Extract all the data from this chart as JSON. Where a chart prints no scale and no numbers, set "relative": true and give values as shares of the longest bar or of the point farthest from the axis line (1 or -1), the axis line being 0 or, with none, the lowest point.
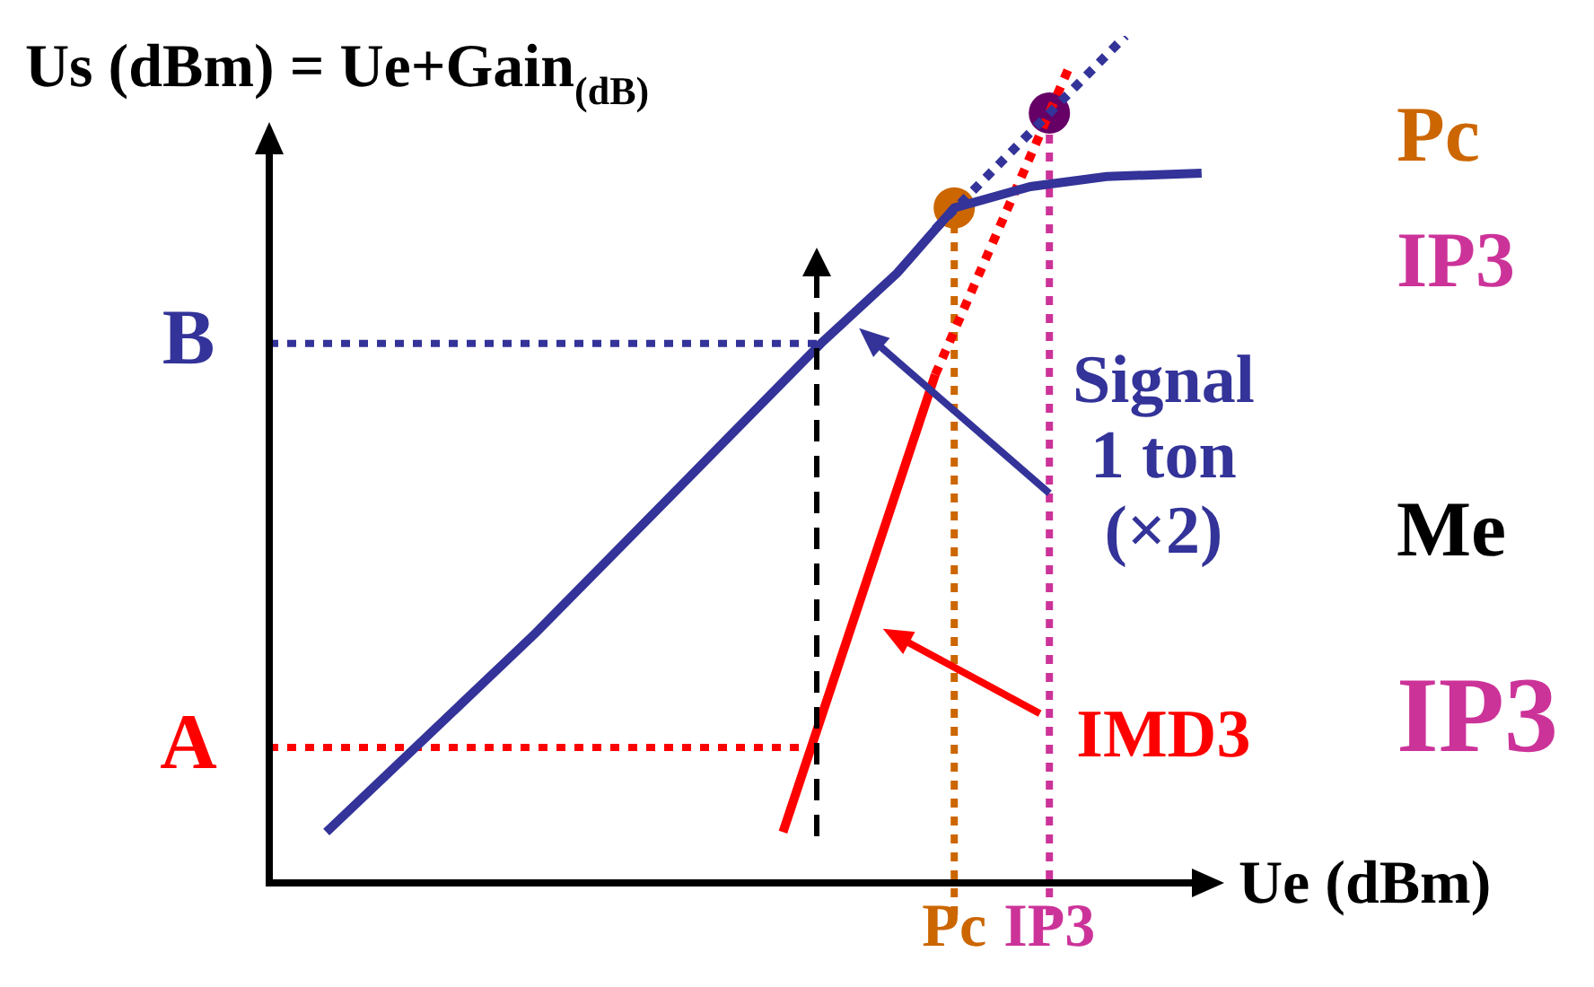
{
  "chart_data": {
    "type": "line",
    "relative": true,
    "ylabel": "Us (dBm) = Ue+Gain$_{(dB)}$",
    "xlabel": "Ue (dBm)",
    "categories": [
      null,
      null,
      null,
      null,
      null,
      null,
      null,
      null,
      null,
      null,
      null,
      null,
      null,
      null,
      null,
      null,
      null,
      null,
      null,
      null,
      null,
      null,
      null,
      null,
      null,
      null,
      null,
      null,
      null,
      null,
      null,
      null,
      null,
      null,
      null,
      null,
      "Pc",
      null,
      null,
      null,
      null,
      "IP3",
      null,
      null,
      null,
      null,
      null,
      null,
      null,
      null,
      null
    ],
    "series": [
      {
        "color": "#333399",
        "values": [
          null,
          null,
          null,
          0.06,
          null,
          null,
          null,
          null,
          null,
          null,
          null,
          null,
          null,
          null,
          0.295,
          null,
          null,
          null,
          null,
          null,
          null,
          null,
          null,
          null,
          null,
          null,
          null,
          null,
          null,
          0.637,
          null,
          null,
          null,
          0.72,
          null,
          null,
          0.797,
          null,
          null,
          null,
          0.822,
          null,
          null,
          null,
          0.834,
          null,
          null,
          null,
          null,
          0.838,
          null
        ]
      },
      {
        "color": "#333399",
        "line_style": "dotted",
        "values": [
          null,
          null,
          null,
          null,
          null,
          null,
          null,
          null,
          null,
          null,
          null,
          null,
          null,
          null,
          null,
          null,
          null,
          null,
          null,
          null,
          null,
          null,
          null,
          null,
          null,
          null,
          null,
          null,
          null,
          null,
          null,
          null,
          null,
          null,
          null,
          0.772,
          null,
          null,
          null,
          null,
          null,
          null,
          null,
          null,
          null,
          1.0,
          null,
          null,
          null,
          null,
          null
        ]
      },
      {
        "color": "#ff0000",
        "values": [
          null,
          null,
          null,
          null,
          null,
          null,
          null,
          null,
          null,
          null,
          null,
          null,
          null,
          null,
          null,
          null,
          null,
          null,
          null,
          null,
          null,
          null,
          null,
          null,
          null,
          null,
          null,
          0.06,
          null,
          null,
          null,
          null,
          null,
          null,
          null,
          0.6,
          null,
          null,
          null,
          null,
          null,
          null,
          null,
          null,
          null,
          null,
          null,
          null,
          null,
          null,
          null
        ]
      },
      {
        "color": "#ff0000",
        "line_style": "dotted",
        "values": [
          null,
          null,
          null,
          null,
          null,
          null,
          null,
          null,
          null,
          null,
          null,
          null,
          null,
          null,
          null,
          null,
          null,
          null,
          null,
          null,
          null,
          null,
          null,
          null,
          null,
          null,
          null,
          null,
          null,
          null,
          null,
          null,
          null,
          null,
          null,
          0.6,
          null,
          null,
          null,
          null,
          null,
          null,
          0.961,
          null,
          null,
          null,
          null,
          null,
          null,
          null,
          null
        ]
      },
      {
        "type": "scatter",
        "marker": "circle",
        "color": "#cc6600",
        "values": [
          null,
          null,
          null,
          null,
          null,
          null,
          null,
          null,
          null,
          null,
          null,
          null,
          null,
          null,
          null,
          null,
          null,
          null,
          null,
          null,
          null,
          null,
          null,
          null,
          null,
          null,
          null,
          null,
          null,
          null,
          null,
          null,
          null,
          null,
          null,
          null,
          0.797,
          null,
          null,
          null,
          null,
          null,
          null,
          null,
          null,
          null,
          null,
          null,
          null,
          null,
          null
        ]
      },
      {
        "type": "scatter",
        "marker": "circle",
        "color": "#660066",
        "values": [
          null,
          null,
          null,
          null,
          null,
          null,
          null,
          null,
          null,
          null,
          null,
          null,
          null,
          null,
          null,
          null,
          null,
          null,
          null,
          null,
          null,
          null,
          null,
          null,
          null,
          null,
          null,
          null,
          null,
          null,
          null,
          null,
          null,
          null,
          null,
          null,
          null,
          null,
          null,
          null,
          null,
          0.909,
          null,
          null,
          null,
          null,
          null,
          null,
          null,
          null,
          null
        ]
      }
    ],
    "ref_lines": [
      {
        "axis": "y",
        "value": 0.16,
        "label": "A",
        "color": "#ff0000",
        "line_style": "dotted"
      },
      {
        "axis": "y",
        "value": 0.637,
        "label": "B",
        "color": "#333399",
        "line_style": "dotted"
      },
      {
        "axis": "x",
        "value": "Pc",
        "color": "#cc6600",
        "line_style": "dotted"
      },
      {
        "axis": "x",
        "value": "IP3",
        "color": "#cc3399",
        "line_style": "dotted"
      }
    ],
    "annotations": [
      "Signal 1 ton (×2)",
      "IMD3",
      "Pc",
      "IP3",
      "Me",
      "IP3"
    ],
    "line_style": "solid",
    "legend": false
  }
}
